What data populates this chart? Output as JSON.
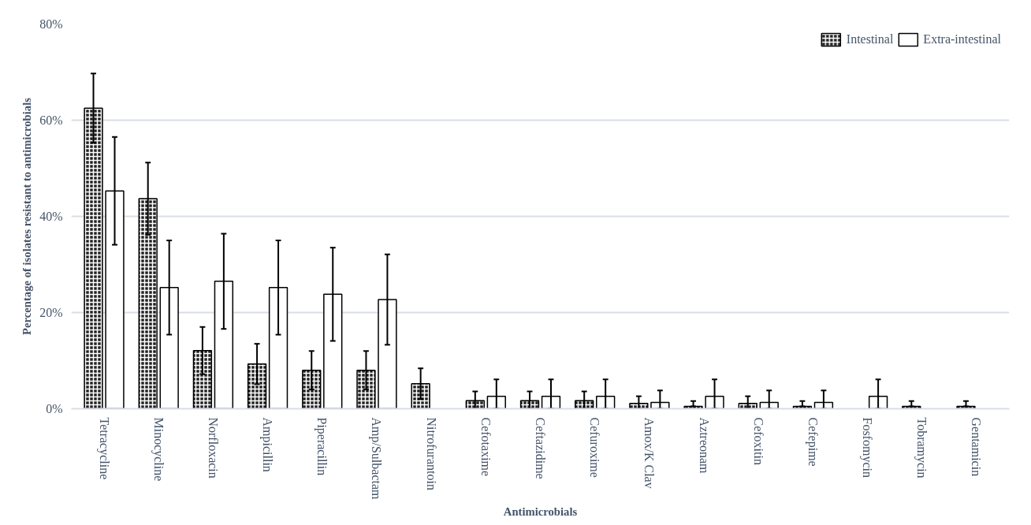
{
  "chart_data": {
    "type": "bar",
    "xlabel": "Antimicrobials",
    "ylabel": "Percentage of isolates resistant to antimicrobials",
    "categories": [
      "Tetracycline",
      "Minocycline",
      "Norfloxacin",
      "Ampicillin",
      "Piperacillin",
      "Amp/Sulbactam",
      "Nitrofurantoin",
      "Cefotaxime",
      "Ceftazidime",
      "Cefuroxime",
      "Amox/K Clav",
      "Aztreonam",
      "Cefoxitin",
      "Cefepime",
      "Fosfomycin",
      "Tobramycin",
      "Gentamicin"
    ],
    "series": [
      {
        "name": "Intestinal",
        "color": "#222222",
        "values": [
          62.5,
          43.7,
          12.1,
          9.3,
          8.0,
          8.0,
          5.2,
          1.7,
          1.7,
          1.7,
          1.1,
          0.5,
          1.1,
          0.5,
          null,
          0.5,
          0.5
        ],
        "errors": [
          7.2,
          7.5,
          4.9,
          4.2,
          4.0,
          4.0,
          3.2,
          [
            0,
            3.6
          ],
          [
            0,
            3.6
          ],
          [
            0,
            3.6
          ],
          [
            0,
            2.6
          ],
          [
            0.5,
            1.6
          ],
          [
            0,
            2.6
          ],
          [
            0.5,
            1.6
          ],
          null,
          [
            0.5,
            1.6
          ],
          [
            0.5,
            1.6
          ]
        ]
      },
      {
        "name": "Extra-intestinal",
        "color": "#ffffff",
        "values": [
          45.3,
          25.2,
          26.5,
          25.2,
          23.8,
          22.7,
          null,
          2.6,
          2.6,
          2.6,
          1.3,
          2.6,
          1.3,
          1.3,
          2.6,
          null,
          null
        ],
        "errors": [
          11.2,
          9.8,
          9.9,
          9.8,
          9.7,
          9.4,
          null,
          [
            0,
            6.1
          ],
          [
            0,
            6.1
          ],
          [
            0,
            6.1
          ],
          [
            0,
            3.8
          ],
          [
            0,
            6.1
          ],
          [
            0,
            3.8
          ],
          [
            0,
            3.8
          ],
          [
            0,
            6.1
          ],
          null,
          null
        ]
      }
    ],
    "ylim": [
      0,
      80
    ],
    "yticks": [
      {
        "value": 0,
        "label": "0%"
      },
      {
        "value": 20,
        "label": "20%"
      },
      {
        "value": 40,
        "label": "40%"
      },
      {
        "value": 60,
        "label": "60%"
      },
      {
        "value": 80,
        "label": "80%"
      }
    ],
    "grid": "y",
    "legend": "top right"
  }
}
